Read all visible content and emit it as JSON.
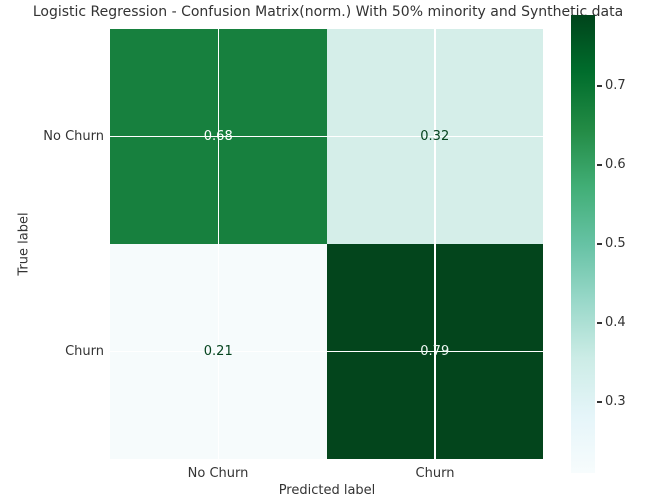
{
  "chart_data": {
    "type": "heatmap",
    "title": "Logistic Regression - Confusion Matrix(norm.) With 50% minority and Synthetic data",
    "xlabel": "Predicted label",
    "ylabel": "True label",
    "x_categories": [
      "No Churn",
      "Churn"
    ],
    "y_categories": [
      "No Churn",
      "Churn"
    ],
    "values": [
      [
        0.68,
        0.32
      ],
      [
        0.21,
        0.79
      ]
    ],
    "cells": [
      {
        "row": "No Churn",
        "col": "No Churn",
        "label": "0.68",
        "bg": "#17803e",
        "fg": "#ffffff"
      },
      {
        "row": "No Churn",
        "col": "Churn",
        "label": "0.32",
        "bg": "#d5eee9",
        "fg": "#06441f"
      },
      {
        "row": "Churn",
        "col": "No Churn",
        "label": "0.21",
        "bg": "#f6fbfc",
        "fg": "#06441f"
      },
      {
        "row": "Churn",
        "col": "Churn",
        "label": "0.79",
        "bg": "#03451c",
        "fg": "#eef6f3"
      }
    ],
    "grid": true,
    "gridline_color": "#ffffff",
    "colorbar": {
      "colormap": "BuGn",
      "vmin": 0.21,
      "vmax": 0.79,
      "ticks": [
        "0.7",
        "0.6",
        "0.5",
        "0.4",
        "0.3"
      ],
      "gradient": [
        "#00441b",
        "#006d2c",
        "#238b45",
        "#41ae76",
        "#66c2a4",
        "#99d8c9",
        "#ccece6",
        "#e5f5f9",
        "#f7fcfd"
      ]
    },
    "text_color": "#333333",
    "background": "#ffffff"
  }
}
